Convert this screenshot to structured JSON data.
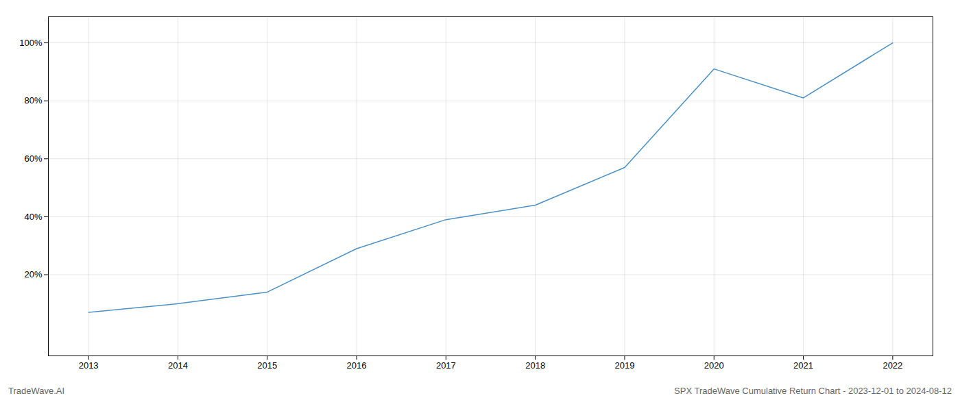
{
  "chart_data": {
    "type": "line",
    "x": [
      2013,
      2014,
      2015,
      2016,
      2017,
      2018,
      2019,
      2020,
      2021,
      2022
    ],
    "values": [
      0.07,
      0.1,
      0.14,
      0.29,
      0.39,
      0.44,
      0.57,
      0.91,
      0.81,
      1.0
    ],
    "color": "#4a90c4",
    "xlim": [
      2012.55,
      2022.45
    ],
    "ylim": [
      -0.08,
      1.09
    ],
    "xticks": [
      2013,
      2014,
      2015,
      2016,
      2017,
      2018,
      2019,
      2020,
      2021,
      2022
    ],
    "yticks": [
      {
        "value": 0.2,
        "label": "20%"
      },
      {
        "value": 0.4,
        "label": "40%"
      },
      {
        "value": 0.6,
        "label": "60%"
      },
      {
        "value": 0.8,
        "label": "80%"
      },
      {
        "value": 1.0,
        "label": "100%"
      }
    ],
    "grid": true,
    "annotations": [
      "TradeWave.AI",
      "SPX TradeWave Cumulative Return Chart - 2023-12-01 to 2024-08-12"
    ]
  }
}
